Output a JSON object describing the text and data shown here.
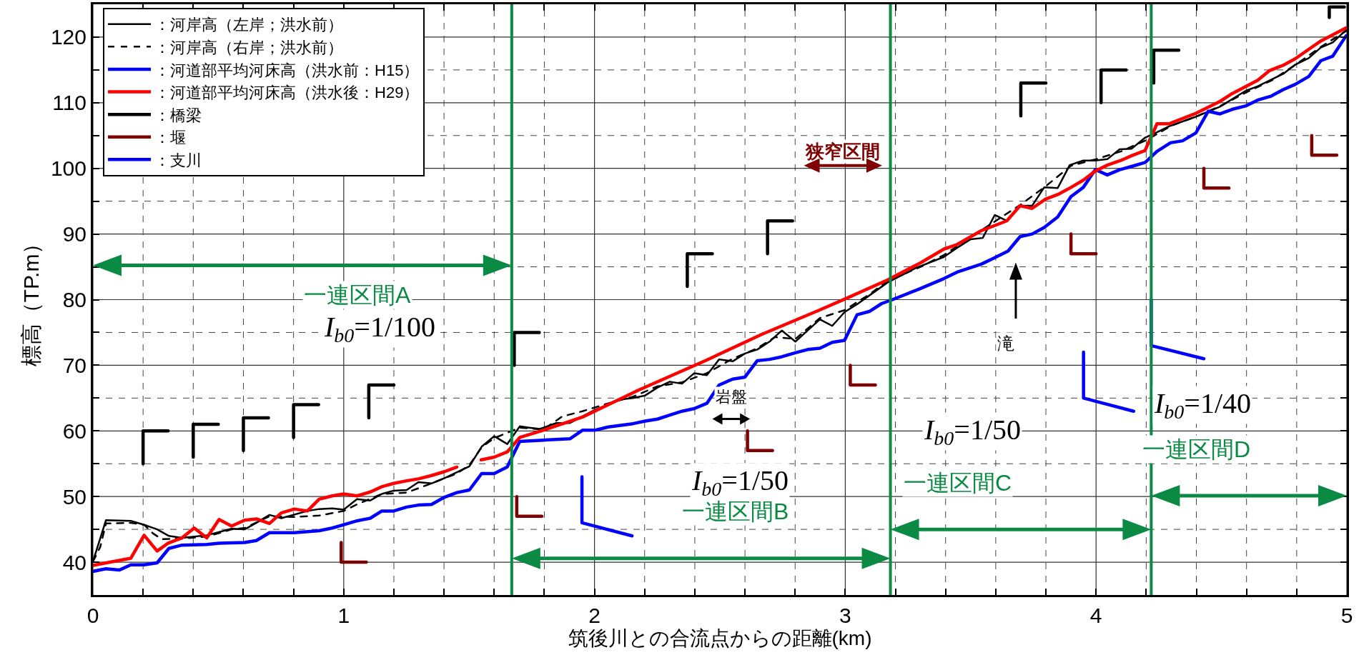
{
  "chart_data": {
    "type": "line",
    "xlabel": "筑後川との合流点からの距離(km)",
    "ylabel": "標高（TP.m）",
    "xlim": [
      0,
      5
    ],
    "ylim": [
      35,
      125
    ],
    "xticks": [
      0,
      {
        "value": 0.2,
        "label": null
      },
      {
        "value": 0.4,
        "label": null
      },
      {
        "value": 0.6,
        "label": null
      },
      {
        "value": 0.8,
        "label": null
      },
      1,
      {
        "value": 1.2,
        "label": null
      },
      {
        "value": 1.4,
        "label": null
      },
      {
        "value": 1.6,
        "label": null
      },
      {
        "value": 1.8,
        "label": null
      },
      2,
      {
        "value": 2.2,
        "label": null
      },
      {
        "value": 2.4,
        "label": null
      },
      {
        "value": 2.6,
        "label": null
      },
      {
        "value": 2.8,
        "label": null
      },
      3,
      {
        "value": 3.2,
        "label": null
      },
      {
        "value": 3.4,
        "label": null
      },
      {
        "value": 3.6,
        "label": null
      },
      {
        "value": 3.8,
        "label": null
      },
      4,
      {
        "value": 4.2,
        "label": null
      },
      {
        "value": 4.4,
        "label": null
      },
      {
        "value": 4.6,
        "label": null
      },
      {
        "value": 4.8,
        "label": null
      },
      5
    ],
    "yticks": [
      40,
      {
        "value": 45,
        "label": null
      },
      50,
      {
        "value": 55,
        "label": null
      },
      60,
      {
        "value": 65,
        "label": null
      },
      70,
      {
        "value": 75,
        "label": null
      },
      80,
      {
        "value": 85,
        "label": null
      },
      90,
      {
        "value": 95,
        "label": null
      },
      100,
      {
        "value": 105,
        "label": null
      },
      110,
      {
        "value": 115,
        "label": null
      },
      120
    ],
    "grid": true,
    "legend": "top left",
    "series": [
      {
        "name": "：河岸高（左岸；洪水前）",
        "color": "#000000",
        "line_style": "solid",
        "x": [
          0,
          0.052,
          0.151,
          0.204,
          0.256,
          0.303,
          0.355,
          0.454,
          0.553,
          0.605,
          0.652,
          0.704,
          0.751,
          0.855,
          0.902,
          0.954,
          1.0,
          1.053,
          1.106,
          1.152,
          1.199,
          1.251,
          1.298,
          1.35,
          1.402,
          1.501,
          1.55,
          1.6,
          1.652,
          1.702,
          1.739,
          1.783,
          1.848,
          1.902,
          2.001,
          2.055,
          2.104,
          2.153,
          2.202,
          2.251,
          2.3,
          2.349,
          2.398,
          2.448,
          2.497,
          2.551,
          2.6,
          2.649,
          2.698,
          2.747,
          2.801,
          2.85,
          2.899,
          2.948,
          2.997,
          3.047,
          3.168,
          3.28,
          3.393,
          3.446,
          3.5,
          3.548,
          3.596,
          3.644,
          3.697,
          3.745,
          3.793,
          3.847,
          3.895,
          3.949,
          3.997,
          4.045,
          4.094,
          4.142,
          4.196,
          4.243,
          4.291,
          4.393,
          4.494,
          4.596,
          4.644,
          4.746,
          4.794,
          4.848,
          4.896,
          4.944,
          4.997
        ],
        "values": [
          40.1,
          46.4,
          46.3,
          45.7,
          45.0,
          44.0,
          43.7,
          44.1,
          45.1,
          45.0,
          46.0,
          47.2,
          46.7,
          47.8,
          48.1,
          48.2,
          48.0,
          49.6,
          49.4,
          50.4,
          50.9,
          51.0,
          52.2,
          52.0,
          52.8,
          54.6,
          57.6,
          59.2,
          58.0,
          60.7,
          60.5,
          60.3,
          61.2,
          61.2,
          63.2,
          64.0,
          64.8,
          65.0,
          65.4,
          66.6,
          67.5,
          67.2,
          68.8,
          68.5,
          70.9,
          70.6,
          71.8,
          72.4,
          73.6,
          75.3,
          73.6,
          75.3,
          77.0,
          76.0,
          78.1,
          79.3,
          82.6,
          84.8,
          86.5,
          87.9,
          89.2,
          89.4,
          92.9,
          92.0,
          94.3,
          94.3,
          97.1,
          97.0,
          100.5,
          101.2,
          101.2,
          101.4,
          102.9,
          103.0,
          104.7,
          105.5,
          106.4,
          107.8,
          109.4,
          111.8,
          112.5,
          114.4,
          115.8,
          116.8,
          118.4,
          119.2,
          121.1
        ]
      },
      {
        "name": "：河岸高（右岸；洪水前）",
        "color": "#000000",
        "line_style": "dashed",
        "x": [
          0,
          0.029,
          0.052,
          0.151,
          0.204,
          0.239,
          0.274,
          0.355,
          0.454,
          0.553,
          0.605,
          0.704,
          0.803,
          0.902,
          1.0,
          1.053,
          1.152,
          1.251,
          1.35,
          1.402,
          1.451,
          1.501,
          1.55,
          1.6,
          1.702,
          1.796,
          1.871,
          1.952,
          2.055,
          2.153,
          2.251,
          2.349,
          2.448,
          2.551,
          2.649,
          2.72,
          2.801,
          2.899,
          2.997,
          3.096,
          3.168,
          3.3,
          3.393,
          3.5,
          3.6,
          3.7,
          3.8,
          3.9,
          4.0,
          4.1,
          4.2,
          4.3,
          4.4,
          4.5,
          4.6,
          4.7,
          4.8,
          4.9,
          5.0
        ],
        "values": [
          40.1,
          42.3,
          45.9,
          46.0,
          45.7,
          44.4,
          43.5,
          43.6,
          43.9,
          45.0,
          45.2,
          47.0,
          46.9,
          47.1,
          47.8,
          48.8,
          50.4,
          50.6,
          52.0,
          52.8,
          53.5,
          54.8,
          57.5,
          58.9,
          60.5,
          60.2,
          62.2,
          63.0,
          64.2,
          65.2,
          66.8,
          67.4,
          68.8,
          71.0,
          72.6,
          74.3,
          74.0,
          77.2,
          78.4,
          80.8,
          82.8,
          85.0,
          86.8,
          89.5,
          92.0,
          94.5,
          97.3,
          100.4,
          101.4,
          102.6,
          104.3,
          106.5,
          107.9,
          109.6,
          111.6,
          113.4,
          115.9,
          118.6,
          121.0
        ]
      },
      {
        "name": "：河道部平均河床高（洪水前：H15）",
        "color": "#0000ff",
        "line_style": "solid",
        "x": [
          0,
          0.052,
          0.105,
          0.151,
          0.204,
          0.256,
          0.303,
          0.355,
          0.454,
          0.503,
          0.605,
          0.652,
          0.704,
          0.803,
          0.902,
          0.954,
          1.0,
          1.053,
          1.106,
          1.152,
          1.199,
          1.251,
          1.298,
          1.35,
          1.402,
          1.451,
          1.501,
          1.55,
          1.6,
          1.652,
          1.702,
          1.796,
          1.902,
          1.952,
          2.001,
          2.055,
          2.153,
          2.202,
          2.251,
          2.3,
          2.349,
          2.398,
          2.448,
          2.497,
          2.551,
          2.6,
          2.649,
          2.698,
          2.747,
          2.801,
          2.85,
          2.899,
          2.948,
          2.997,
          3.047,
          3.096,
          3.145,
          3.188,
          3.3,
          3.393,
          3.446,
          3.542,
          3.596,
          3.649,
          3.697,
          3.745,
          3.793,
          3.847,
          3.9,
          3.949,
          3.997,
          4.045,
          4.094,
          4.142,
          4.196,
          4.243,
          4.297,
          4.345,
          4.398,
          4.447,
          4.494,
          4.543,
          4.596,
          4.644,
          4.698,
          4.746,
          4.794,
          4.848,
          4.896,
          4.944,
          4.997
        ],
        "values": [
          38.6,
          39.0,
          38.8,
          39.6,
          39.6,
          39.9,
          42.1,
          42.6,
          42.7,
          42.9,
          43.0,
          43.3,
          44.5,
          44.5,
          44.8,
          45.2,
          45.7,
          46.3,
          46.7,
          47.8,
          47.8,
          48.4,
          48.7,
          48.8,
          49.9,
          50.6,
          51.0,
          53.5,
          53.5,
          54.5,
          58.4,
          58.6,
          58.8,
          60.1,
          60.1,
          60.6,
          61.1,
          61.5,
          61.8,
          62.4,
          63.0,
          63.4,
          64.2,
          67.0,
          67.9,
          68.2,
          70.7,
          70.9,
          71.3,
          71.9,
          72.4,
          72.6,
          73.5,
          73.8,
          77.7,
          78.2,
          79.4,
          80.0,
          81.7,
          83.2,
          84.2,
          85.4,
          86.4,
          87.4,
          89.6,
          90.0,
          91.0,
          92.6,
          95.7,
          97.1,
          99.8,
          99.0,
          99.8,
          100.3,
          100.9,
          102.6,
          103.9,
          104.2,
          105.4,
          108.7,
          108.3,
          109.0,
          109.5,
          110.4,
          111.0,
          112.0,
          112.8,
          114.0,
          116.4,
          117.1,
          120.2
        ]
      },
      {
        "name": "：河道部平均河床高（洪水後：H29）",
        "color": "#ff0000",
        "line_style": "solid",
        "x": [
          0,
          0.151,
          0.204,
          0.256,
          0.3,
          0.355,
          0.404,
          0.454,
          0.503,
          0.553,
          0.605,
          0.652,
          0.704,
          0.751,
          0.803,
          0.855,
          0.902,
          0.954,
          1.0,
          1.053,
          1.106,
          1.152,
          1.199,
          1.251,
          1.298,
          1.35,
          1.402,
          1.451,
          1.5,
          1.548,
          1.6,
          1.652,
          1.702,
          1.796,
          1.952,
          2.175,
          2.448,
          2.666,
          2.896,
          3.005,
          3.168,
          3.3,
          3.393,
          3.446,
          3.542,
          3.644,
          3.697,
          3.745,
          3.798,
          3.852,
          3.9,
          3.949,
          3.997,
          4.045,
          4.098,
          4.146,
          4.195,
          4.243,
          4.291,
          4.393,
          4.494,
          4.543,
          4.644,
          4.692,
          4.746,
          4.794,
          4.896,
          4.997
        ],
        "values": [
          39.5,
          40.6,
          44.1,
          41.7,
          42.9,
          43.7,
          45.2,
          43.7,
          46.5,
          45.5,
          46.4,
          46.6,
          45.9,
          47.5,
          48.1,
          47.8,
          49.6,
          50.1,
          50.4,
          50.1,
          50.7,
          51.5,
          52.0,
          52.4,
          52.7,
          53.2,
          53.8,
          54.5,
          null,
          55.6,
          56.0,
          56.8,
          59.0,
          60.1,
          62.1,
          66.2,
          70.8,
          74.7,
          78.4,
          80.2,
          83.0,
          85.6,
          87.7,
          88.4,
          90.5,
          92.0,
          94.3,
          93.9,
          95.3,
          96.1,
          97.1,
          98.2,
          99.6,
          100.5,
          101.2,
          102.0,
          102.7,
          106.8,
          106.8,
          108.3,
          110.2,
          111.4,
          113.4,
          114.9,
          115.7,
          116.7,
          119.4,
          121.4
        ]
      },
      {
        "name": "：橋梁",
        "color": "#000000",
        "line_style": "solid",
        "x": [
          0.2,
          0.2,
          0.3,
          null,
          0.4,
          0.4,
          0.5,
          null,
          0.6,
          0.6,
          0.7,
          null,
          0.8,
          0.8,
          0.9,
          null,
          1.1,
          1.1,
          1.2,
          null,
          1.68,
          1.68,
          1.78,
          null,
          2.37,
          2.37,
          2.47,
          null,
          2.69,
          2.69,
          2.79,
          null,
          3.7,
          3.7,
          3.8,
          null,
          4.02,
          4.02,
          4.12,
          null,
          4.23,
          4.23,
          4.33,
          null,
          4.93,
          4.93,
          4.99
        ],
        "values": [
          55,
          60,
          60,
          null,
          56,
          61,
          61,
          null,
          57,
          62,
          62,
          null,
          59,
          64,
          64,
          null,
          62,
          67,
          67,
          null,
          70,
          75,
          75,
          null,
          82,
          87,
          87,
          null,
          87,
          92,
          92,
          null,
          108,
          113,
          113,
          null,
          110,
          115,
          115,
          null,
          113,
          118,
          118,
          null,
          123,
          124.6,
          124.6
        ]
      },
      {
        "name": "：堰",
        "color": "#7f0000",
        "line_style": "solid",
        "x": [
          0.99,
          0.99,
          1.09,
          null,
          1.69,
          1.69,
          1.79,
          null,
          2.61,
          2.61,
          2.71,
          null,
          3.02,
          3.02,
          3.12,
          null,
          3.9,
          3.9,
          4.0,
          null,
          4.43,
          4.43,
          4.53,
          null,
          4.86,
          4.86,
          4.96
        ],
        "values": [
          43,
          40,
          40,
          null,
          50,
          47,
          47,
          null,
          60,
          57,
          57,
          null,
          70,
          67,
          67,
          null,
          90,
          87,
          87,
          null,
          100,
          97,
          97,
          null,
          105,
          102,
          102
        ]
      },
      {
        "name": "：支川",
        "color": "#0000ff",
        "line_style": "solid",
        "x": [
          1.95,
          1.95,
          2.15,
          null,
          3.95,
          3.95,
          4.15,
          null,
          4.22,
          4.22,
          4.43
        ],
        "values": [
          53,
          46,
          44,
          null,
          72,
          65,
          63,
          null,
          80,
          73,
          71
        ]
      }
    ],
    "ref_lines": [
      {
        "axis": "x",
        "value": 1.67,
        "color": "#0b8a44"
      },
      {
        "axis": "x",
        "value": 3.18,
        "color": "#0b8a44"
      },
      {
        "axis": "x",
        "value": 4.22,
        "color": "#0b8a44"
      }
    ],
    "annotations": [
      "一連区間A",
      "I$_{b0}$=1/100",
      "狭窄区間",
      "岩盤",
      "I$_{b0}$=1/50",
      "一連区間B",
      "滝",
      "I$_{b0}$=1/50",
      "一連区間C",
      "I$_{b0}$=1/40",
      "一連区間D"
    ]
  }
}
